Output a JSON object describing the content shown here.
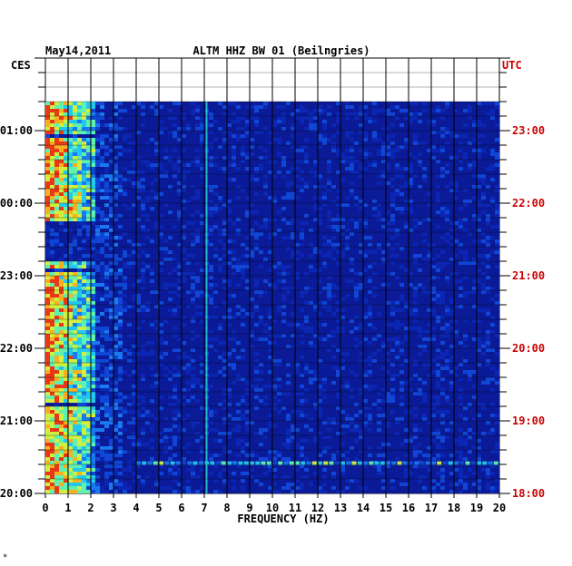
{
  "chart_data": {
    "type": "heatmap",
    "date": "May14,2011",
    "title": "ALTM HHZ BW 01 (Beilngries)",
    "left_timezone": "CES",
    "right_timezone": "UTC",
    "xlabel": "FREQUENCY (HZ)",
    "xlim": [
      0,
      20
    ],
    "x_ticks": [
      "0",
      "1",
      "2",
      "3",
      "4",
      "5",
      "6",
      "7",
      "8",
      "9",
      "10",
      "11",
      "12",
      "13",
      "14",
      "15",
      "16",
      "17",
      "18",
      "19",
      "20"
    ],
    "left_time_ticks": [
      "01:00",
      "00:00",
      "23:00",
      "22:00",
      "21:00",
      "20:00"
    ],
    "right_time_ticks": [
      "23:00",
      "22:00",
      "21:00",
      "20:00",
      "19:00",
      "18:00"
    ],
    "time_range_utc": [
      "18:00",
      "23:25"
    ],
    "colors": {
      "background": "#0b1a96",
      "right_axis": "#cc0000",
      "text": "#000000"
    },
    "features": [
      {
        "description": "broad energy band",
        "freq_range_hz": [
          0,
          2
        ],
        "intensity": "high"
      },
      {
        "description": "narrow spectral line",
        "freq_hz": 7.1,
        "intensity": "medium"
      },
      {
        "description": "transient horizontal band",
        "time_utc": "18:25",
        "freq_range_hz": [
          4,
          20
        ],
        "intensity": "medium"
      }
    ],
    "grid": true
  },
  "footer_mark": "*"
}
